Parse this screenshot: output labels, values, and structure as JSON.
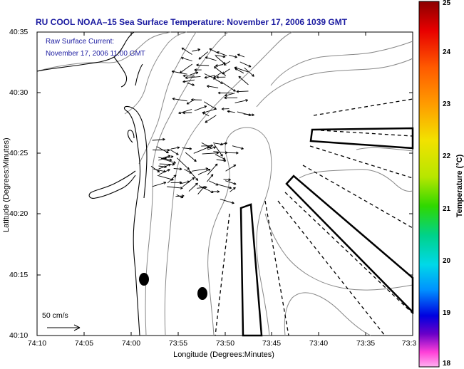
{
  "title": "RU COOL  NOAA–15  Sea Surface Temperature:  November 17, 2006 1039 GMT",
  "legend": {
    "line1": "Raw Surface Current:",
    "line2": "November 17, 2006 11:00 GMT"
  },
  "axes": {
    "xlabel": "Longitude (Degrees:Minutes)",
    "ylabel": "Latitude (Degrees:Minutes)",
    "x_ticks": [
      "74:10",
      "74:05",
      "74:00",
      "73:55",
      "73:50",
      "73:45",
      "73:40",
      "73:35",
      "73:3"
    ],
    "y_ticks": [
      "40:35",
      "40:30",
      "40:25",
      "40:20",
      "40:15",
      "40:10"
    ]
  },
  "scale_label": "50 cm/s",
  "colorbar": {
    "label": "Temperature (°C)",
    "min": 18,
    "max": 25,
    "ticks": [
      "25",
      "24",
      "23",
      "22",
      "21",
      "20",
      "19",
      "18"
    ]
  },
  "colors": {
    "title": "#1a1aa0",
    "land_outline": "#000000",
    "bathymetry": "#888888"
  }
}
